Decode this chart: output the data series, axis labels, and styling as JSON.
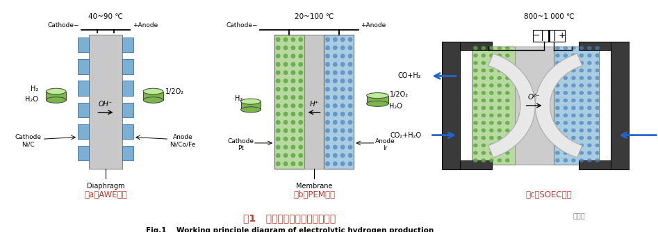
{
  "title_cn": "图1   电解水制氢技术的工作原理",
  "title_en": "Fig.1    Working principle diagram of electrolytic hydrogen production",
  "title_cn_color": "#c0392b",
  "title_en_color": "#000000",
  "bg_color": "#ffffff",
  "panels": [
    {
      "label": "（a）AWE技术",
      "temp": "40~90 ℃",
      "label_color": "#c0392b"
    },
    {
      "label": "（b）PEM技术",
      "temp": "20~100 ℃",
      "label_color": "#c0392b"
    },
    {
      "label": "（c）SOEC技术",
      "temp": "800~1 000 ℃",
      "label_color": "#c0392b"
    }
  ],
  "colors": {
    "gray_diaphragm": "#c8c8c8",
    "blue_electrode": "#7bafd4",
    "light_blue_electrode": "#a8cde0",
    "green_electrode": "#8dc879",
    "light_green": "#b8d9a0",
    "dot_green": "#5fa843",
    "dot_blue": "#4a7fc1",
    "dark_wall": "#555555",
    "mid_gray": "#b0b0b0",
    "soec_gray_center": "#cccccc",
    "arrow_blue": "#2266cc",
    "gas_green": "#7ab648",
    "white": "#ffffff",
    "black": "#000000"
  }
}
